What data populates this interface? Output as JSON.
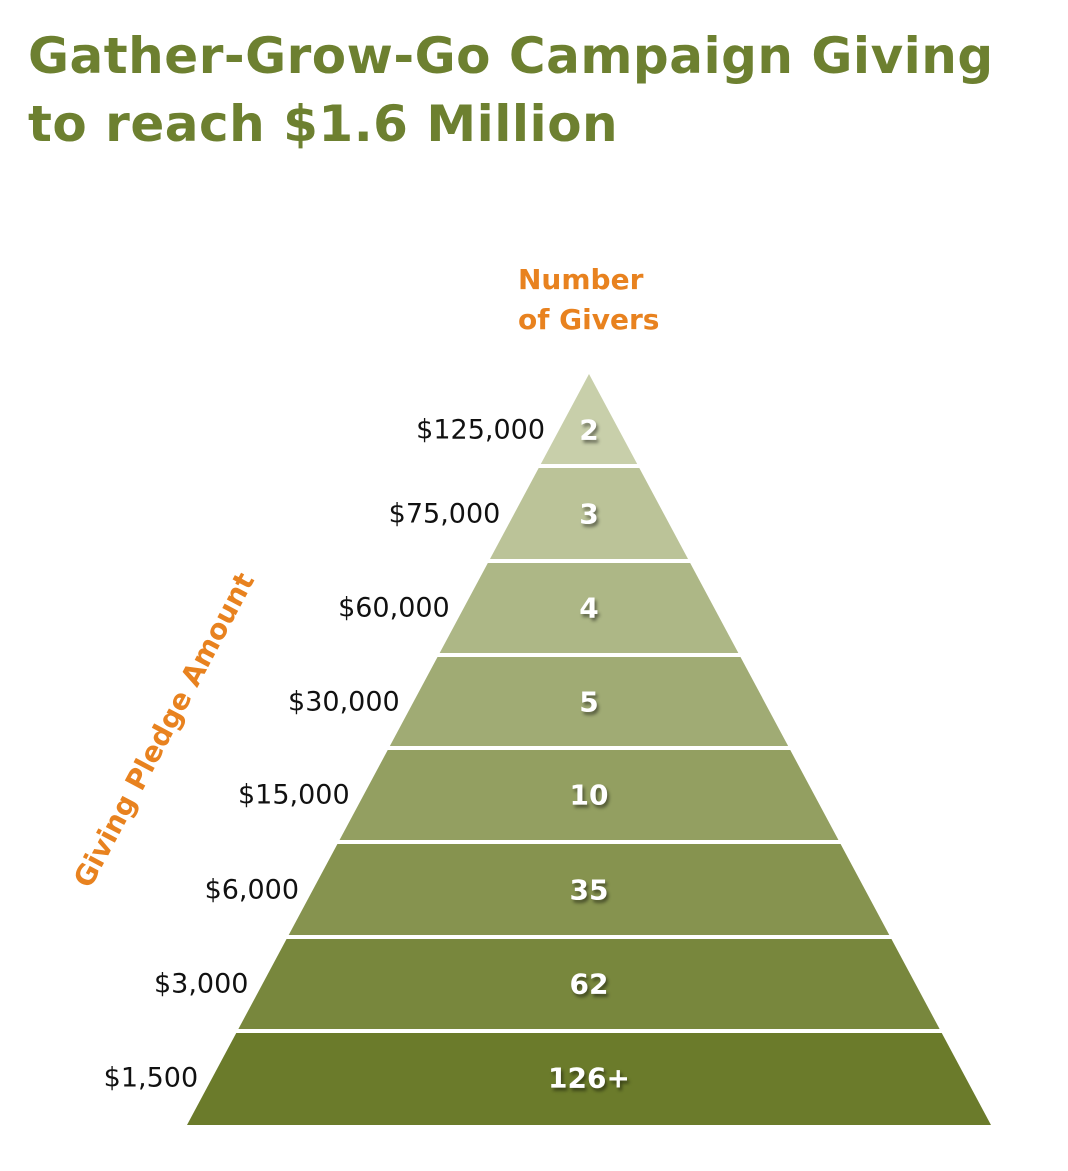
{
  "title": {
    "line1": "Gather-Grow-Go Campaign Giving",
    "line2": "to reach $1.6 Million"
  },
  "column_header": {
    "line1": "Number",
    "line2": "of Givers"
  },
  "axis_label": "Giving Pledge Amount",
  "colors": {
    "title": "#6d8030",
    "accent": "#e8821f",
    "tier_top": "#c8cfaa",
    "tier_bottom": "#6b7b2b"
  },
  "tiers": [
    {
      "amount": "$125,000",
      "givers": "2"
    },
    {
      "amount": "$75,000",
      "givers": "3"
    },
    {
      "amount": "$60,000",
      "givers": "4"
    },
    {
      "amount": "$30,000",
      "givers": "5"
    },
    {
      "amount": "$15,000",
      "givers": "10"
    },
    {
      "amount": "$6,000",
      "givers": "35"
    },
    {
      "amount": "$3,000",
      "givers": "62"
    },
    {
      "amount": "$1,500",
      "givers": "126+"
    }
  ]
}
